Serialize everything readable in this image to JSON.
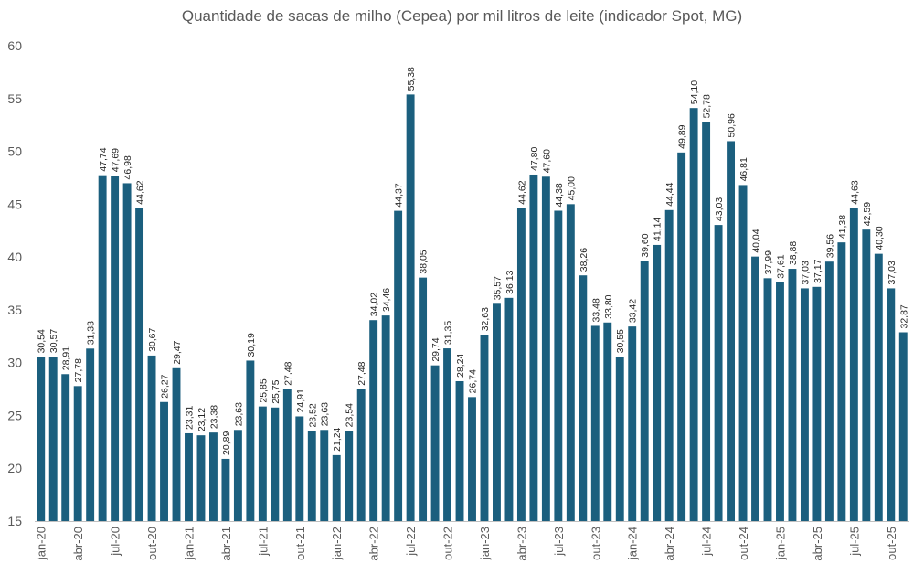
{
  "chart_data": {
    "type": "bar",
    "title": "Quantidade de sacas de milho (Cepea) por mil litros de leite (indicador Spot, MG)",
    "xlabel": "",
    "ylabel": "",
    "ylim": [
      15,
      60
    ],
    "yticks": [
      15,
      20,
      25,
      30,
      35,
      40,
      45,
      50,
      55,
      60
    ],
    "grid": false,
    "bar_color": "#1B5F7E",
    "categories": [
      "jan-20",
      "fev-20",
      "mar-20",
      "abr-20",
      "mai-20",
      "jun-20",
      "jul-20",
      "ago-20",
      "set-20",
      "out-20",
      "nov-20",
      "dez-20",
      "jan-21",
      "fev-21",
      "mar-21",
      "abr-21",
      "mai-21",
      "jun-21",
      "jul-21",
      "ago-21",
      "set-21",
      "out-21",
      "nov-21",
      "dez-21",
      "jan-22",
      "fev-22",
      "mar-22",
      "abr-22",
      "mai-22",
      "jun-22",
      "jul-22",
      "ago-22",
      "set-22",
      "out-22",
      "nov-22",
      "dez-22",
      "jan-23",
      "fev-23",
      "mar-23",
      "abr-23",
      "mai-23",
      "jun-23",
      "jul-23",
      "ago-23",
      "set-23",
      "out-23",
      "nov-23",
      "dez-23",
      "jan-24",
      "fev-24",
      "mar-24",
      "abr-24",
      "mai-24",
      "jun-24",
      "jul-24",
      "ago-24",
      "set-24",
      "out-24",
      "nov-24",
      "dez-24",
      "jan-25",
      "fev-25",
      "mar-25",
      "abr-25",
      "mai-25",
      "jun-25",
      "jul-25",
      "ago-25",
      "set-25",
      "out-25",
      "nov-25"
    ],
    "x_tick_labels": [
      "jan-20",
      "abr-20",
      "jul-20",
      "out-20",
      "jan-21",
      "abr-21",
      "jul-21",
      "out-21",
      "jan-22",
      "abr-22",
      "jul-22",
      "out-22",
      "jan-23",
      "abr-23",
      "jul-23",
      "out-23",
      "jan-24",
      "abr-24",
      "jul-24",
      "out-24",
      "jan-25",
      "abr-25",
      "jul-25",
      "out-25"
    ],
    "values": [
      30.54,
      30.57,
      28.91,
      27.78,
      31.33,
      47.74,
      47.69,
      46.98,
      44.62,
      30.67,
      26.27,
      29.47,
      23.31,
      23.12,
      23.38,
      20.89,
      23.63,
      30.19,
      25.85,
      25.75,
      27.48,
      24.91,
      23.52,
      23.63,
      21.24,
      23.54,
      27.48,
      34.02,
      34.46,
      44.37,
      55.38,
      38.05,
      29.74,
      31.35,
      28.24,
      26.74,
      32.63,
      35.57,
      36.13,
      44.62,
      47.8,
      47.6,
      44.38,
      45.0,
      38.26,
      33.48,
      33.8,
      30.55,
      33.42,
      39.6,
      41.14,
      44.44,
      49.89,
      54.1,
      52.78,
      43.03,
      50.96,
      46.81,
      40.04,
      37.99,
      37.61,
      38.88,
      37.03,
      37.17,
      39.56,
      41.38,
      44.63,
      42.59,
      40.3,
      37.03,
      32.87
    ],
    "data_labels": [
      "30,54",
      "30,57",
      "28,91",
      "27,78",
      "31,33",
      "47,74",
      "47,69",
      "46,98",
      "44,62",
      "30,67",
      "26,27",
      "29,47",
      "23,31",
      "23,12",
      "23,38",
      "20,89",
      "23,63",
      "30,19",
      "25,85",
      "25,75",
      "27,48",
      "24,91",
      "23,52",
      "23,63",
      "21,24",
      "23,54",
      "27,48",
      "34,02",
      "34,46",
      "44,37",
      "55,38",
      "38,05",
      "29,74",
      "31,35",
      "28,24",
      "26,74",
      "32,63",
      "35,57",
      "36,13",
      "44,62",
      "47,80",
      "47,60",
      "44,38",
      "45,00",
      "38,26",
      "33,48",
      "33,80",
      "30,55",
      "33,42",
      "39,60",
      "41,14",
      "44,44",
      "49,89",
      "54,10",
      "52,78",
      "43,03",
      "50,96",
      "46,81",
      "40,04",
      "37,99",
      "37,61",
      "38,88",
      "37,03",
      "37,17",
      "39,56",
      "41,38",
      "44,63",
      "42,59",
      "40,30",
      "37,03",
      "32,87"
    ]
  }
}
